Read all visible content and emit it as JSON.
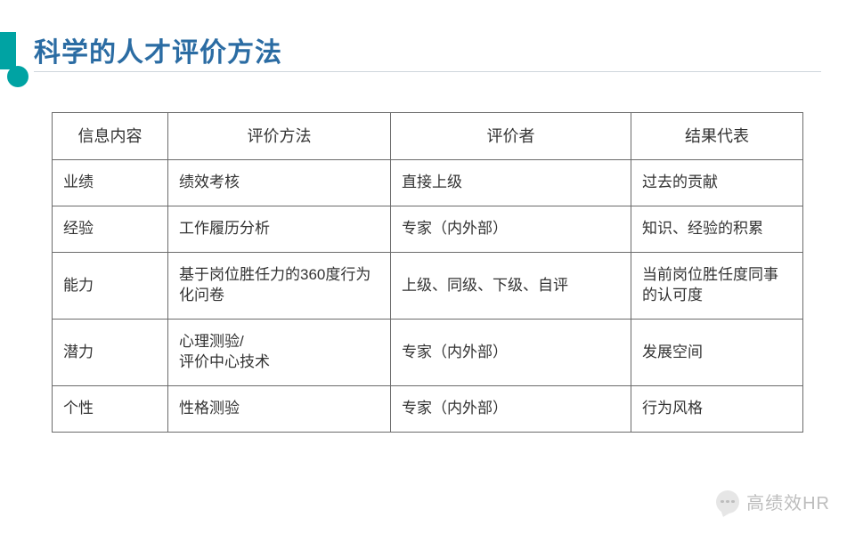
{
  "title": "科学的人才评价方法",
  "accent_color": "#00a3a3",
  "title_color": "#2b6ca3",
  "border_color": "#6b6b6b",
  "table": {
    "columns": [
      "信息内容",
      "评价方法",
      "评价者",
      "结果代表"
    ],
    "rows": [
      [
        "业绩",
        "绩效考核",
        "直接上级",
        "过去的贡献"
      ],
      [
        "经验",
        "工作履历分析",
        "专家（内外部）",
        "知识、经验的积累"
      ],
      [
        "能力",
        "基于岗位胜任力的360度行为化问卷",
        "上级、同级、下级、自评",
        "当前岗位胜任度同事的认可度"
      ],
      [
        "潜力",
        "心理测验/\n评价中心技术",
        "专家（内外部）",
        "发展空间"
      ],
      [
        "个性",
        "性格测验",
        "专家（内外部）",
        "行为风格"
      ]
    ]
  },
  "watermark": {
    "text": "高绩效HR"
  }
}
